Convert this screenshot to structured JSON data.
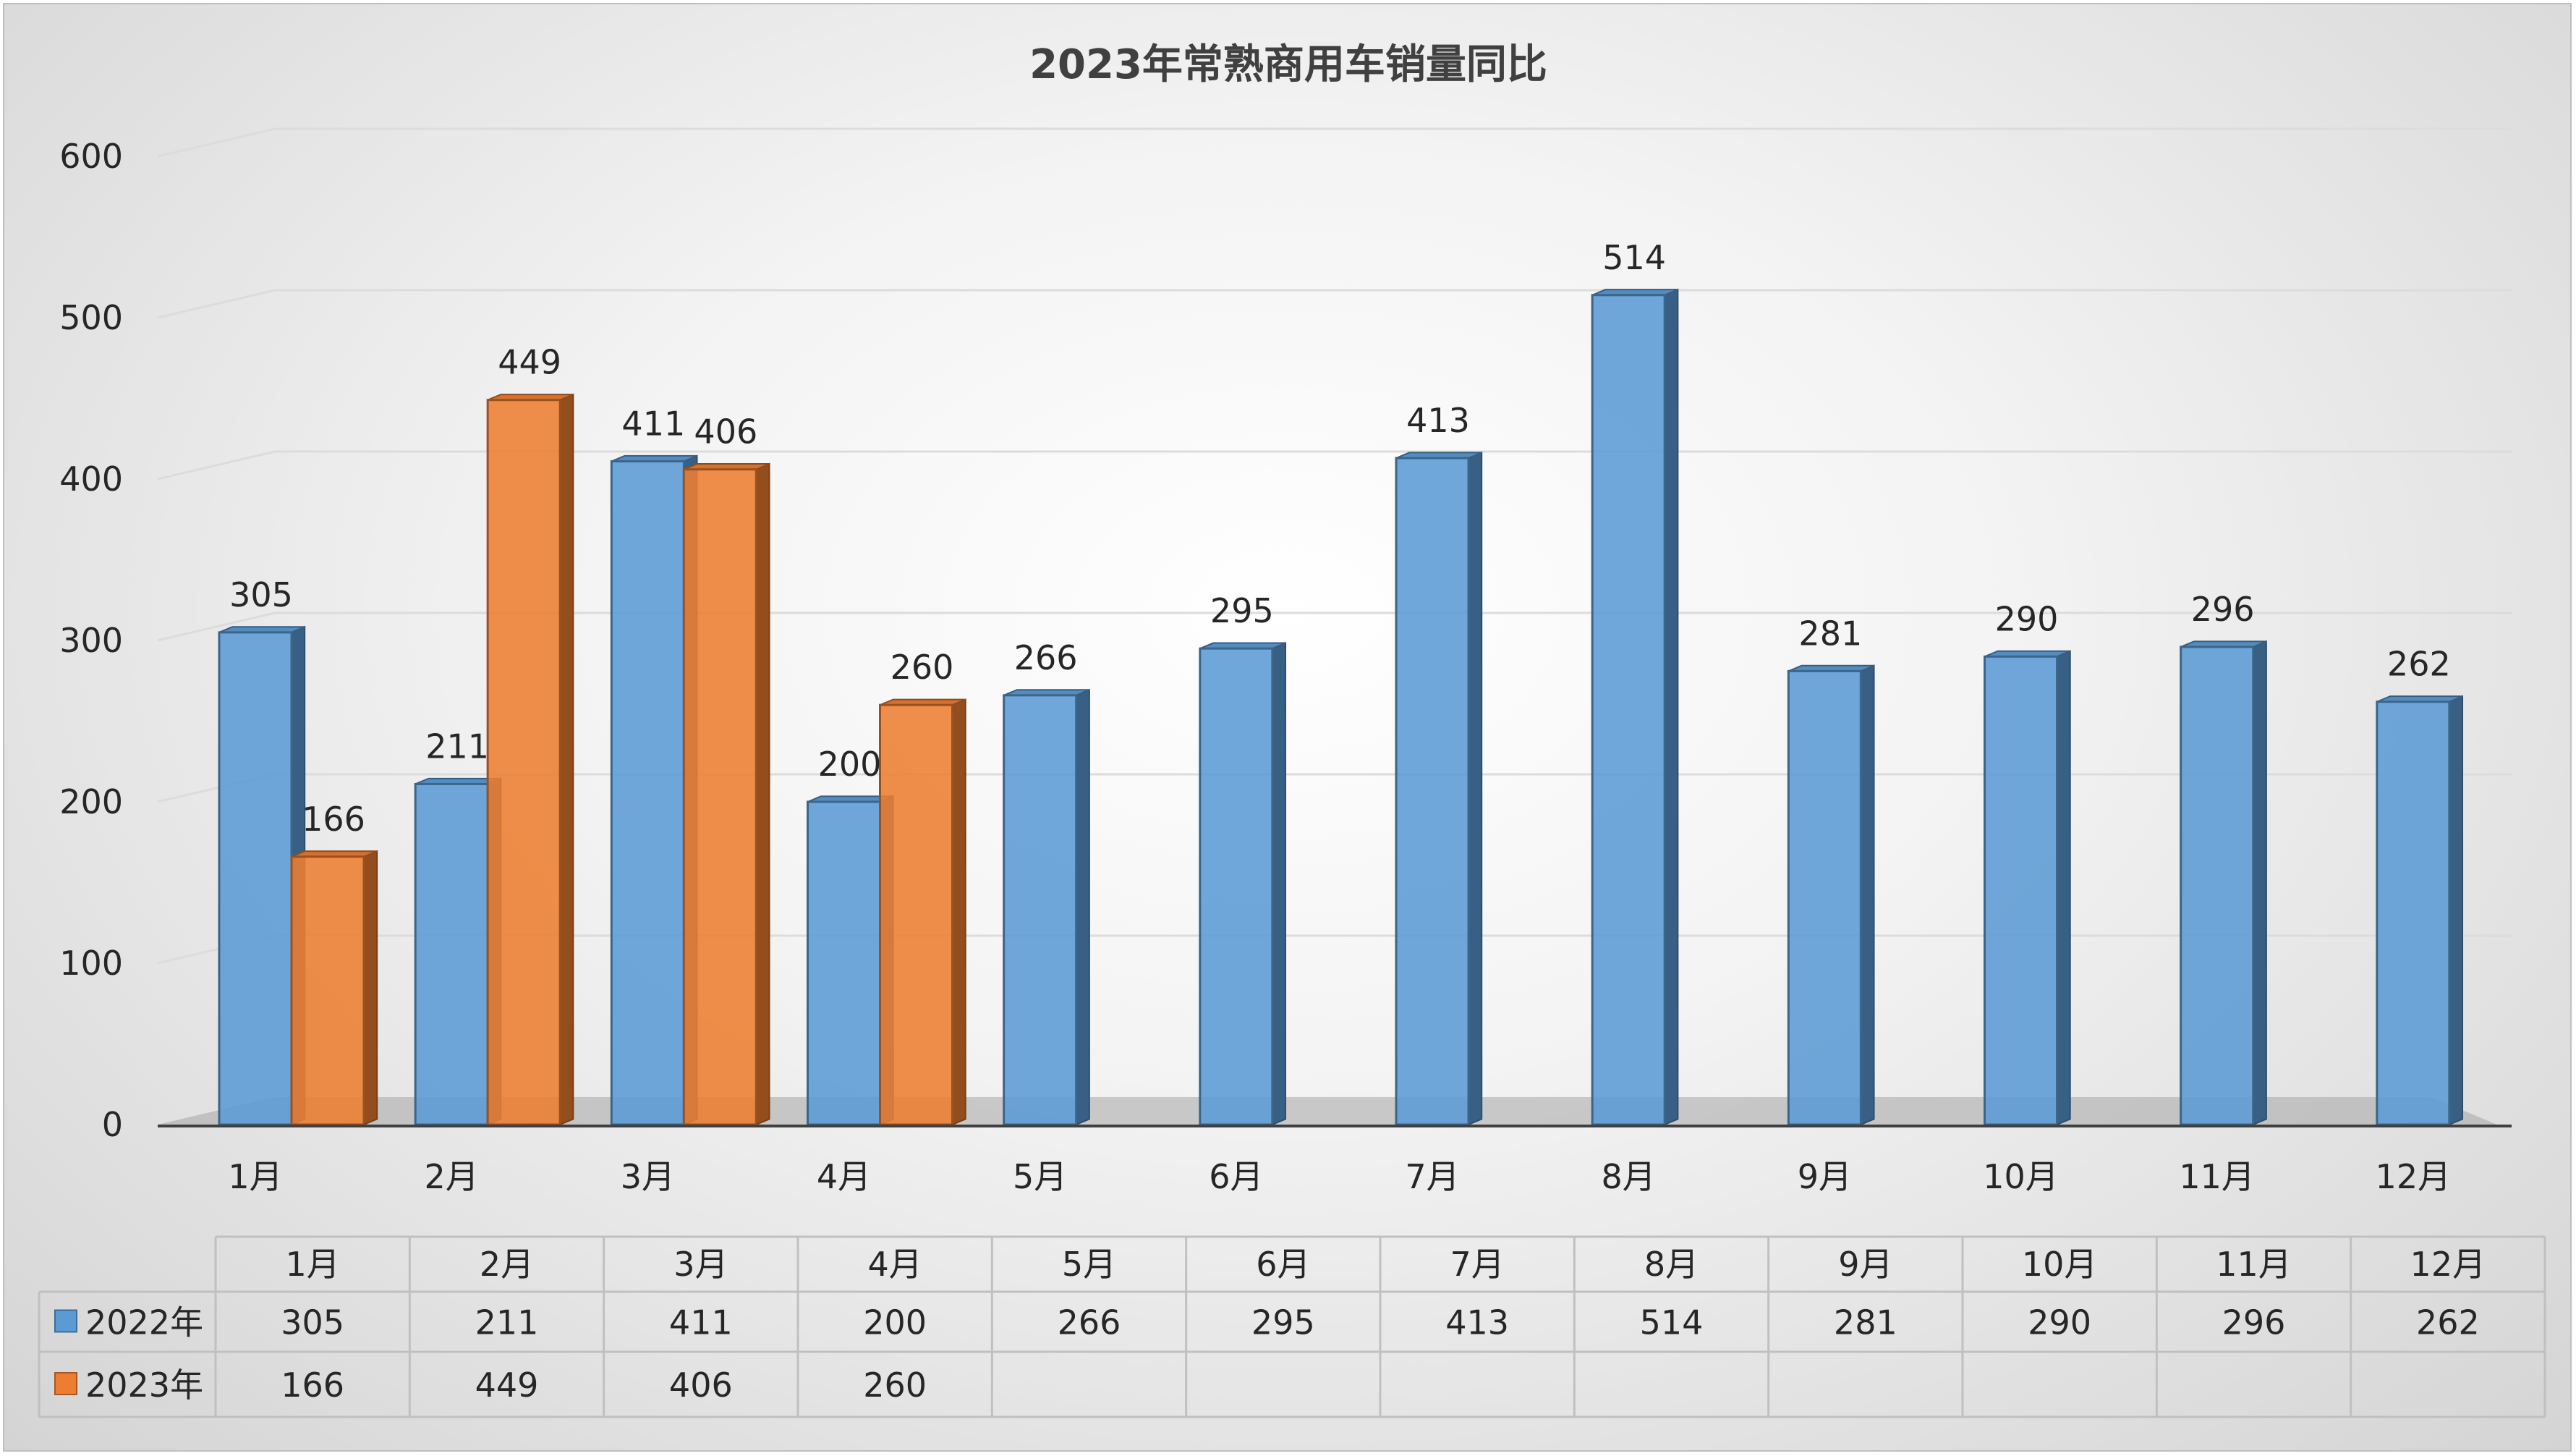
{
  "chart_data": {
    "type": "bar",
    "title": "2023年常熟商用车销量同比",
    "categories": [
      "1月",
      "2月",
      "3月",
      "4月",
      "5月",
      "6月",
      "7月",
      "8月",
      "9月",
      "10月",
      "11月",
      "12月"
    ],
    "series": [
      {
        "name": "2022年",
        "color": "#5b9bd5",
        "values": [
          305,
          211,
          411,
          200,
          266,
          295,
          413,
          514,
          281,
          290,
          296,
          262
        ]
      },
      {
        "name": "2023年",
        "color": "#ed7d31",
        "values": [
          166,
          449,
          406,
          260,
          null,
          null,
          null,
          null,
          null,
          null,
          null,
          null
        ]
      }
    ],
    "ylim": [
      0,
      600
    ],
    "yticks": [
      0,
      100,
      200,
      300,
      400,
      500,
      600
    ],
    "grid": true,
    "data_table": true,
    "style": "3d-clustered-column"
  }
}
